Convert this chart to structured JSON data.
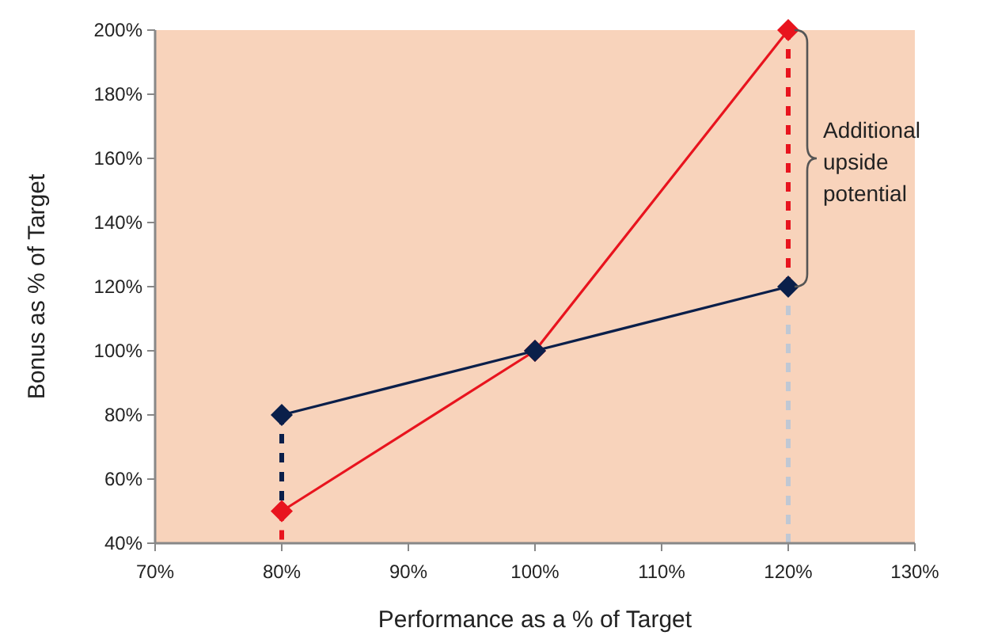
{
  "chart_data": {
    "type": "line",
    "xlabel": "Performance as a % of Target",
    "ylabel": "Bonus as % of Target",
    "xlim": [
      70,
      130
    ],
    "xticks": [
      {
        "value": 70,
        "label": "70%"
      },
      {
        "value": 80,
        "label": "80%"
      },
      {
        "value": 90,
        "label": "90%"
      },
      {
        "value": 100,
        "label": "100%"
      },
      {
        "value": 110,
        "label": "110%"
      },
      {
        "value": 120,
        "label": "120%"
      },
      {
        "value": 130,
        "label": "130%"
      }
    ],
    "ylim": [
      40,
      200
    ],
    "yticks": [
      {
        "value": 40,
        "label": "40%"
      },
      {
        "value": 60,
        "label": "60%"
      },
      {
        "value": 80,
        "label": "80%"
      },
      {
        "value": 100,
        "label": "100%"
      },
      {
        "value": 120,
        "label": "120%"
      },
      {
        "value": 140,
        "label": "140%"
      },
      {
        "value": 160,
        "label": "160%"
      },
      {
        "value": 180,
        "label": "180%"
      },
      {
        "value": 200,
        "label": "200%"
      }
    ],
    "grid": false,
    "series": [
      {
        "color": "#e8141e",
        "x": [
          80,
          100,
          120
        ],
        "values": [
          50,
          100,
          200
        ],
        "marker": "diamond",
        "line_style": "solid"
      },
      {
        "color": "#0a1f4a",
        "x": [
          80,
          100,
          120
        ],
        "values": [
          80,
          100,
          120
        ],
        "marker": "diamond",
        "line_style": "solid"
      },
      {
        "color": "#c0c8d4",
        "x": [
          120,
          120
        ],
        "values": [
          120,
          40
        ],
        "line_style": "dashed"
      },
      {
        "color": "#e8141e",
        "x": [
          80,
          80
        ],
        "values": [
          50,
          40
        ],
        "line_style": "dashed"
      },
      {
        "color": "#e8141e",
        "x": [
          120,
          120
        ],
        "values": [
          200,
          120
        ],
        "line_style": "dashed"
      },
      {
        "color": "#0a1f4a",
        "x": [
          80,
          80
        ],
        "values": [
          80,
          50
        ],
        "line_style": "dashed"
      }
    ],
    "annotations": [
      {
        "text": "Additional upside potential",
        "x": 120,
        "y": 160
      }
    ]
  }
}
